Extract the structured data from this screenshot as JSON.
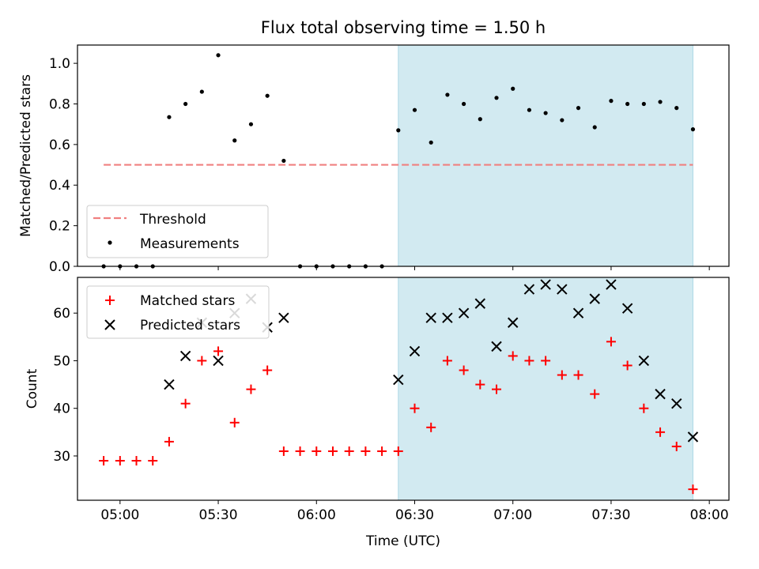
{
  "figure": {
    "title": "Flux total observing time = 1.50 h",
    "xlabel": "Time (UTC)",
    "x_ticks": [
      "05:00",
      "05:30",
      "06:00",
      "06:30",
      "07:00",
      "07:30",
      "08:00"
    ],
    "shaded_interval": [
      "06:25",
      "07:55"
    ],
    "colors": {
      "shade": "#add8e6",
      "threshold": "#f08080",
      "measurements": "#000000",
      "matched": "#ff0000",
      "predicted": "#000000"
    }
  },
  "chart_data": [
    {
      "type": "scatter",
      "ylabel": "Matched/Predicted stars",
      "ylim": [
        0,
        1.09
      ],
      "yticks": [
        "0.0",
        "0.2",
        "0.4",
        "0.6",
        "0.8",
        "1.0"
      ],
      "legend_position": "lower-left",
      "threshold": {
        "name": "Threshold",
        "value": 0.5,
        "x_range": [
          "04:55",
          "07:55"
        ]
      },
      "series": [
        {
          "name": "Measurements",
          "x": [
            "04:55",
            "05:00",
            "05:05",
            "05:10",
            "05:15",
            "05:20",
            "05:25",
            "05:30",
            "05:35",
            "05:40",
            "05:45",
            "05:50",
            "05:55",
            "06:00",
            "06:05",
            "06:10",
            "06:15",
            "06:20",
            "06:25",
            "06:30",
            "06:35",
            "06:40",
            "06:45",
            "06:50",
            "06:55",
            "07:00",
            "07:05",
            "07:10",
            "07:15",
            "07:20",
            "07:25",
            "07:30",
            "07:35",
            "07:40",
            "07:45",
            "07:50",
            "07:55"
          ],
          "y": [
            0,
            0,
            0,
            0,
            0.735,
            0.8,
            0.86,
            1.04,
            0.62,
            0.7,
            0.84,
            0.52,
            0,
            0,
            0,
            0,
            0,
            0,
            0.67,
            0.77,
            0.61,
            0.845,
            0.8,
            0.725,
            0.83,
            0.875,
            0.77,
            0.755,
            0.72,
            0.78,
            0.685,
            0.815,
            0.8,
            0.8,
            0.81,
            0.78,
            0.675
          ]
        }
      ]
    },
    {
      "type": "scatter",
      "ylabel": "Count",
      "ylim": [
        20.7,
        67.5
      ],
      "yticks": [
        "30",
        "40",
        "50",
        "60"
      ],
      "legend_position": "upper-left",
      "series": [
        {
          "name": "Matched stars",
          "marker": "+",
          "x": [
            "04:55",
            "05:00",
            "05:05",
            "05:10",
            "05:15",
            "05:20",
            "05:25",
            "05:30",
            "05:35",
            "05:40",
            "05:45",
            "05:50",
            "05:55",
            "06:00",
            "06:05",
            "06:10",
            "06:15",
            "06:20",
            "06:25",
            "06:30",
            "06:35",
            "06:40",
            "06:45",
            "06:50",
            "06:55",
            "07:00",
            "07:05",
            "07:10",
            "07:15",
            "07:20",
            "07:25",
            "07:30",
            "07:35",
            "07:40",
            "07:45",
            "07:50",
            "07:55"
          ],
          "y": [
            29,
            29,
            29,
            29,
            33,
            41,
            50,
            52,
            37,
            44,
            48,
            31,
            31,
            31,
            31,
            31,
            31,
            31,
            31,
            40,
            36,
            50,
            48,
            45,
            44,
            51,
            50,
            50,
            47,
            47,
            43,
            54,
            49,
            40,
            35,
            32,
            23
          ]
        },
        {
          "name": "Predicted stars",
          "marker": "x",
          "x": [
            "05:15",
            "05:20",
            "05:25",
            "05:30",
            "05:35",
            "05:40",
            "05:45",
            "05:50",
            "06:25",
            "06:30",
            "06:35",
            "06:40",
            "06:45",
            "06:50",
            "06:55",
            "07:00",
            "07:05",
            "07:10",
            "07:15",
            "07:20",
            "07:25",
            "07:30",
            "07:35",
            "07:40",
            "07:45",
            "07:50",
            "07:55"
          ],
          "y": [
            45,
            51,
            58,
            50,
            60,
            63,
            57,
            59,
            46,
            52,
            59,
            59,
            60,
            62,
            53,
            58,
            65,
            66,
            65,
            60,
            63,
            66,
            61,
            50,
            43,
            41,
            34
          ]
        }
      ]
    }
  ]
}
